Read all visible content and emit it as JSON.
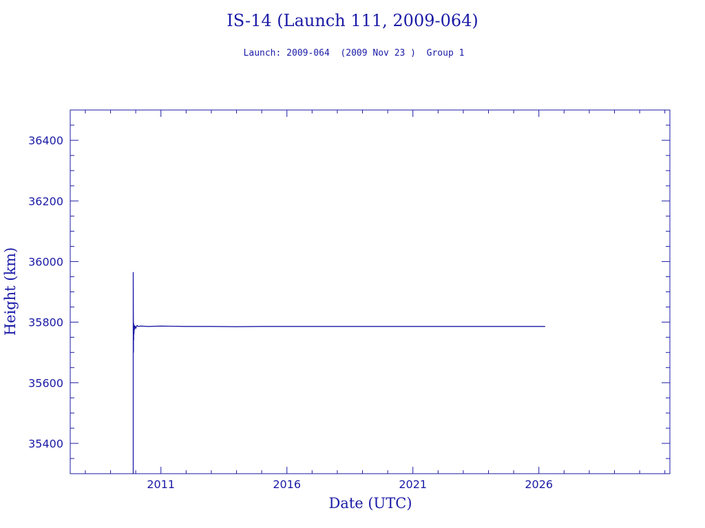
{
  "chart_data": {
    "type": "line",
    "title": "IS-14 (Launch 111, 2009-064)",
    "subtitle": "Launch: 2009-064  (2009 Nov 23 )  Group 1",
    "xlabel": "Date (UTC)",
    "ylabel": "Height (km)",
    "xlim": [
      2007.4,
      2031.2
    ],
    "ylim": [
      35300,
      36500
    ],
    "x_ticks": [
      2011,
      2016,
      2021,
      2026
    ],
    "x_tick_labels": [
      "2011",
      "2016",
      "2021",
      "2026"
    ],
    "y_ticks": [
      35400,
      35600,
      35800,
      36000,
      36200,
      36400
    ],
    "y_tick_labels": [
      "35400",
      "35600",
      "35800",
      "36000",
      "36200",
      "36400"
    ],
    "grid": false,
    "line_color": "#1a1aa6",
    "series": [
      {
        "x": [
          2009.9,
          2009.9,
          2009.91,
          2009.91,
          2009.92,
          2009.92,
          2009.93,
          2009.94,
          2009.95,
          2009.97,
          2010.0,
          2010.05,
          2010.1,
          2010.2,
          2010.5,
          2011.0,
          2012.0,
          2013.0,
          2014.0,
          2015.0,
          2016.0,
          2017.0,
          2018.0,
          2019.0,
          2020.0,
          2021.0,
          2022.0,
          2023.0,
          2024.0,
          2025.0,
          2026.0,
          2026.25
        ],
        "y": [
          35300,
          35965,
          35700,
          35800,
          35740,
          35795,
          35760,
          35790,
          35775,
          35788,
          35780,
          35789,
          35786,
          35787,
          35786,
          35787,
          35786,
          35786,
          35785,
          35786,
          35786,
          35786,
          35786,
          35786,
          35786,
          35786,
          35786,
          35786,
          35786,
          35786,
          35786,
          35786
        ]
      }
    ]
  }
}
